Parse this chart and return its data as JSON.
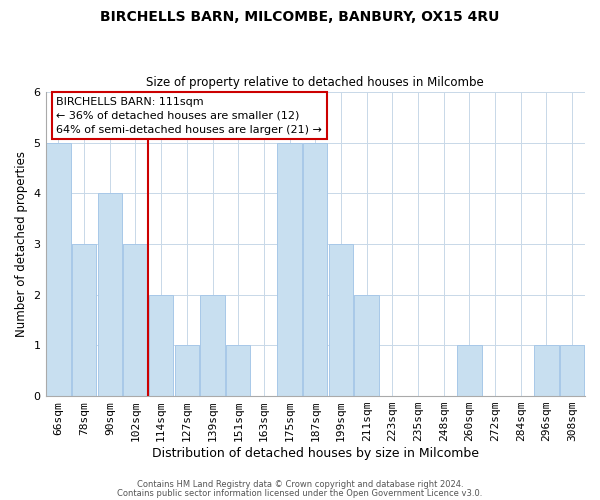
{
  "title": "BIRCHELLS BARN, MILCOMBE, BANBURY, OX15 4RU",
  "subtitle": "Size of property relative to detached houses in Milcombe",
  "xlabel": "Distribution of detached houses by size in Milcombe",
  "ylabel": "Number of detached properties",
  "bin_labels": [
    "66sqm",
    "78sqm",
    "90sqm",
    "102sqm",
    "114sqm",
    "127sqm",
    "139sqm",
    "151sqm",
    "163sqm",
    "175sqm",
    "187sqm",
    "199sqm",
    "211sqm",
    "223sqm",
    "235sqm",
    "248sqm",
    "260sqm",
    "272sqm",
    "284sqm",
    "296sqm",
    "308sqm"
  ],
  "bar_heights": [
    5,
    3,
    4,
    3,
    2,
    1,
    2,
    1,
    0,
    5,
    5,
    3,
    2,
    0,
    0,
    0,
    1,
    0,
    0,
    1,
    1
  ],
  "bar_color": "#c8dff0",
  "bar_edge_color": "#a8c8e8",
  "property_line_col": 4,
  "property_line_color": "#cc0000",
  "annotation_text": "BIRCHELLS BARN: 111sqm\n← 36% of detached houses are smaller (12)\n64% of semi-detached houses are larger (21) →",
  "annotation_box_color": "#ffffff",
  "annotation_box_edge": "#cc0000",
  "ylim": [
    0,
    6
  ],
  "footer_line1": "Contains HM Land Registry data © Crown copyright and database right 2024.",
  "footer_line2": "Contains public sector information licensed under the Open Government Licence v3.0.",
  "background_color": "#ffffff",
  "grid_color": "#c8d8e8"
}
